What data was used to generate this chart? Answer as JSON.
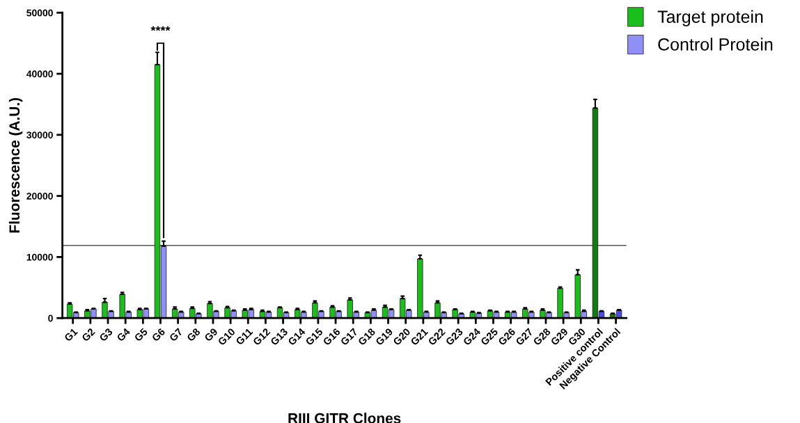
{
  "chart_data": {
    "type": "bar",
    "xlabel": "RIII GITR Clones",
    "ylabel": "Fluorescence (A.U.)",
    "categories": [
      "G1",
      "G2",
      "G3",
      "G4",
      "G5",
      "G6",
      "G7",
      "G8",
      "G9",
      "G10",
      "G11",
      "G12",
      "G13",
      "G14",
      "G15",
      "G16",
      "G17",
      "G18",
      "G19",
      "G20",
      "G21",
      "G22",
      "G23",
      "G24",
      "G25",
      "G26",
      "G27",
      "G28",
      "G29",
      "G30",
      "Positive control",
      "Negative Control"
    ],
    "series": [
      {
        "name": "Target protein",
        "color": "#1bbf1b",
        "colors": [
          "#1bbf1b",
          "#1bbf1b",
          "#1bbf1b",
          "#1bbf1b",
          "#1bbf1b",
          "#1bbf1b",
          "#1bbf1b",
          "#1bbf1b",
          "#1bbf1b",
          "#1bbf1b",
          "#1bbf1b",
          "#1bbf1b",
          "#1bbf1b",
          "#1bbf1b",
          "#1bbf1b",
          "#1bbf1b",
          "#1bbf1b",
          "#1bbf1b",
          "#1bbf1b",
          "#1bbf1b",
          "#1bbf1b",
          "#1bbf1b",
          "#1bbf1b",
          "#1bbf1b",
          "#1bbf1b",
          "#1bbf1b",
          "#1bbf1b",
          "#1bbf1b",
          "#1bbf1b",
          "#1bbf1b",
          "#117a11",
          "#117a11"
        ],
        "values": [
          2300,
          1200,
          2600,
          3900,
          1400,
          41500,
          1500,
          1600,
          2400,
          1700,
          1300,
          1100,
          1700,
          1400,
          2500,
          1800,
          3000,
          900,
          1800,
          3200,
          9700,
          2500,
          1400,
          1000,
          1200,
          1000,
          1500,
          1300,
          4900,
          7100,
          34400,
          700
        ],
        "errors": [
          200,
          200,
          600,
          300,
          200,
          2000,
          300,
          200,
          300,
          200,
          200,
          200,
          100,
          200,
          300,
          200,
          300,
          100,
          300,
          400,
          600,
          300,
          100,
          100,
          100,
          100,
          200,
          200,
          200,
          800,
          1400,
          100
        ]
      },
      {
        "name": "Control Protein",
        "color": "#8f8ff5",
        "colors": [
          "#8f8ff5",
          "#8f8ff5",
          "#8f8ff5",
          "#8f8ff5",
          "#8f8ff5",
          "#8f8ff5",
          "#8f8ff5",
          "#8f8ff5",
          "#8f8ff5",
          "#8f8ff5",
          "#8f8ff5",
          "#8f8ff5",
          "#8f8ff5",
          "#8f8ff5",
          "#8f8ff5",
          "#8f8ff5",
          "#8f8ff5",
          "#8f8ff5",
          "#8f8ff5",
          "#8f8ff5",
          "#8f8ff5",
          "#8f8ff5",
          "#8f8ff5",
          "#8f8ff5",
          "#8f8ff5",
          "#8f8ff5",
          "#8f8ff5",
          "#8f8ff5",
          "#8f8ff5",
          "#8f8ff5",
          "#4a4ae8",
          "#4a4ae8"
        ],
        "values": [
          900,
          1500,
          1100,
          1000,
          1500,
          11800,
          1000,
          700,
          1100,
          1200,
          1400,
          1000,
          900,
          1000,
          1100,
          1100,
          1000,
          1300,
          1400,
          1300,
          1000,
          900,
          700,
          800,
          1000,
          1000,
          1000,
          900,
          900,
          1100,
          1100,
          1300
        ],
        "errors": [
          100,
          100,
          100,
          100,
          100,
          800,
          100,
          100,
          100,
          100,
          200,
          100,
          100,
          100,
          100,
          100,
          100,
          200,
          100,
          100,
          100,
          100,
          100,
          100,
          100,
          100,
          100,
          100,
          100,
          200,
          100,
          100
        ]
      }
    ],
    "ylim": [
      0,
      50000
    ],
    "yticks": [
      0,
      10000,
      20000,
      30000,
      40000,
      50000
    ],
    "ref_lines": [
      {
        "axis": "y",
        "value": 11900,
        "color": "#555555"
      }
    ],
    "annotations": [
      "****"
    ],
    "legend": "top right",
    "grid": false
  }
}
